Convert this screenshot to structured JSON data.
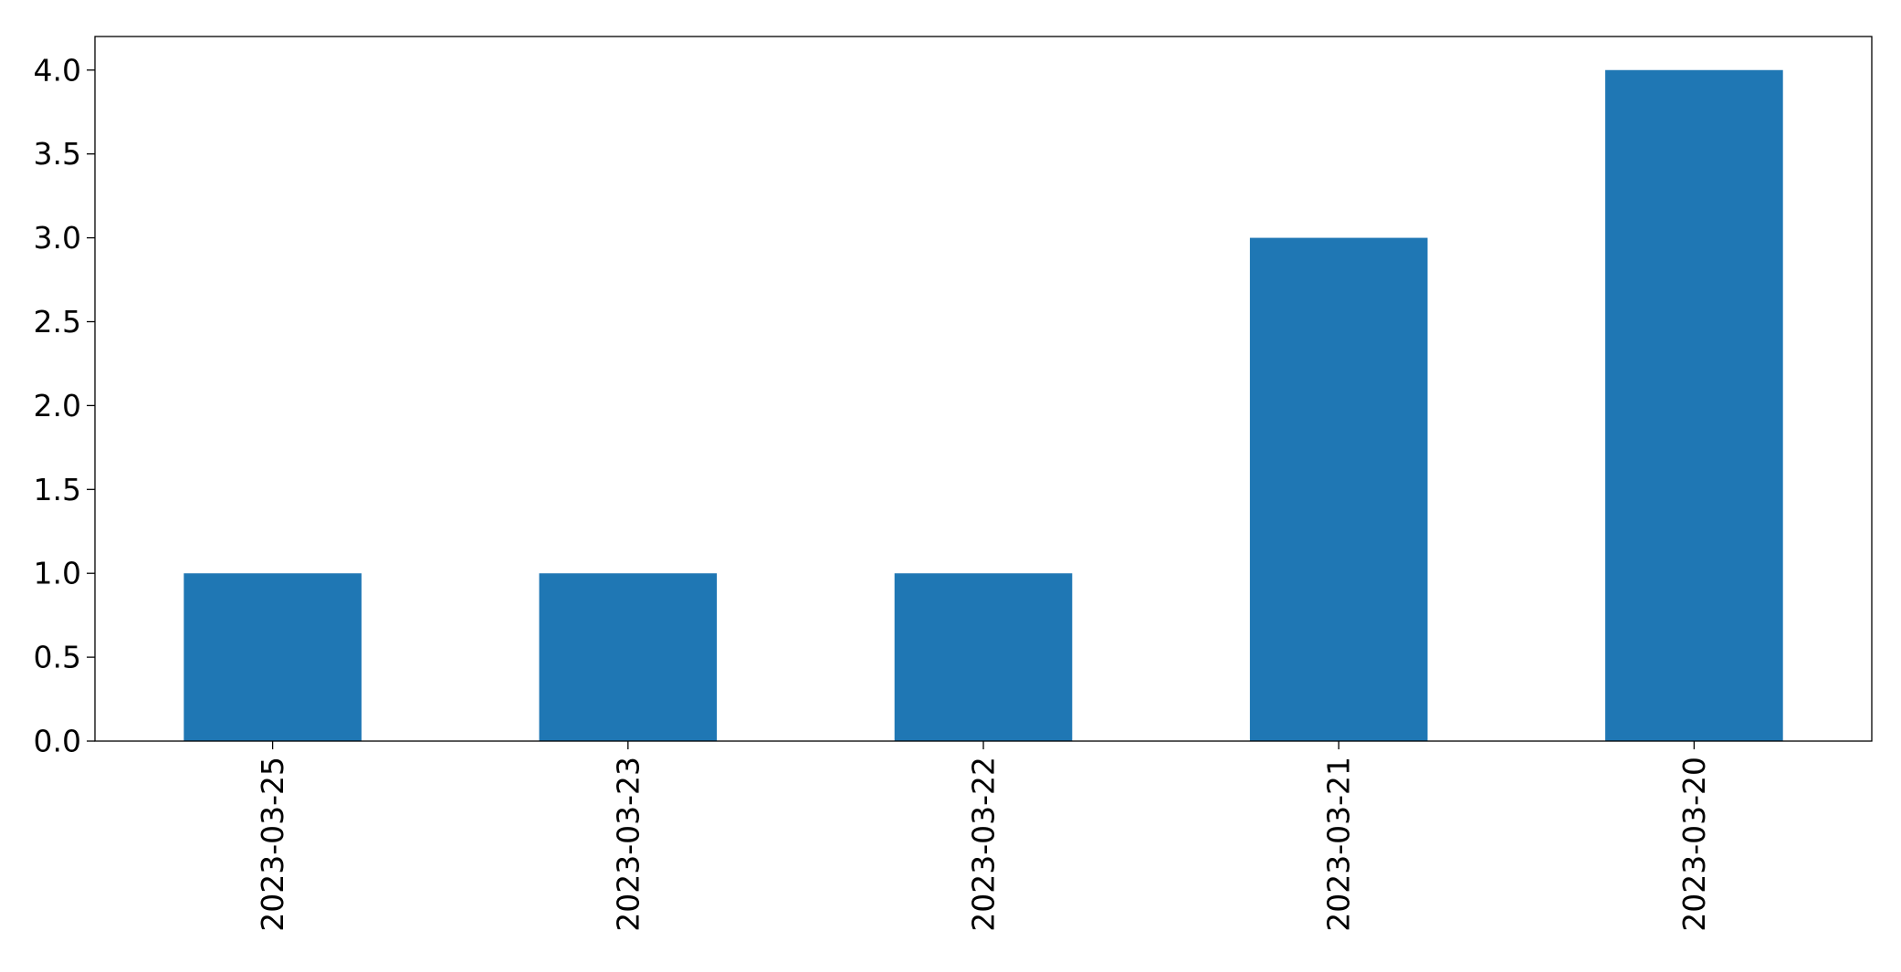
{
  "chart_data": {
    "type": "bar",
    "title": "",
    "xlabel": "",
    "ylabel": "",
    "categories": [
      "2023-03-25",
      "2023-03-23",
      "2023-03-22",
      "2023-03-21",
      "2023-03-20"
    ],
    "values": [
      1,
      1,
      1,
      3,
      4
    ],
    "ylim": [
      0,
      4.2
    ],
    "yticks": [
      "0.0",
      "0.5",
      "1.0",
      "1.5",
      "2.0",
      "2.5",
      "3.0",
      "3.5",
      "4.0"
    ],
    "bar_color": "#1f77b4",
    "grid": false,
    "legend": "none",
    "x_tick_rotation": "vertical"
  }
}
